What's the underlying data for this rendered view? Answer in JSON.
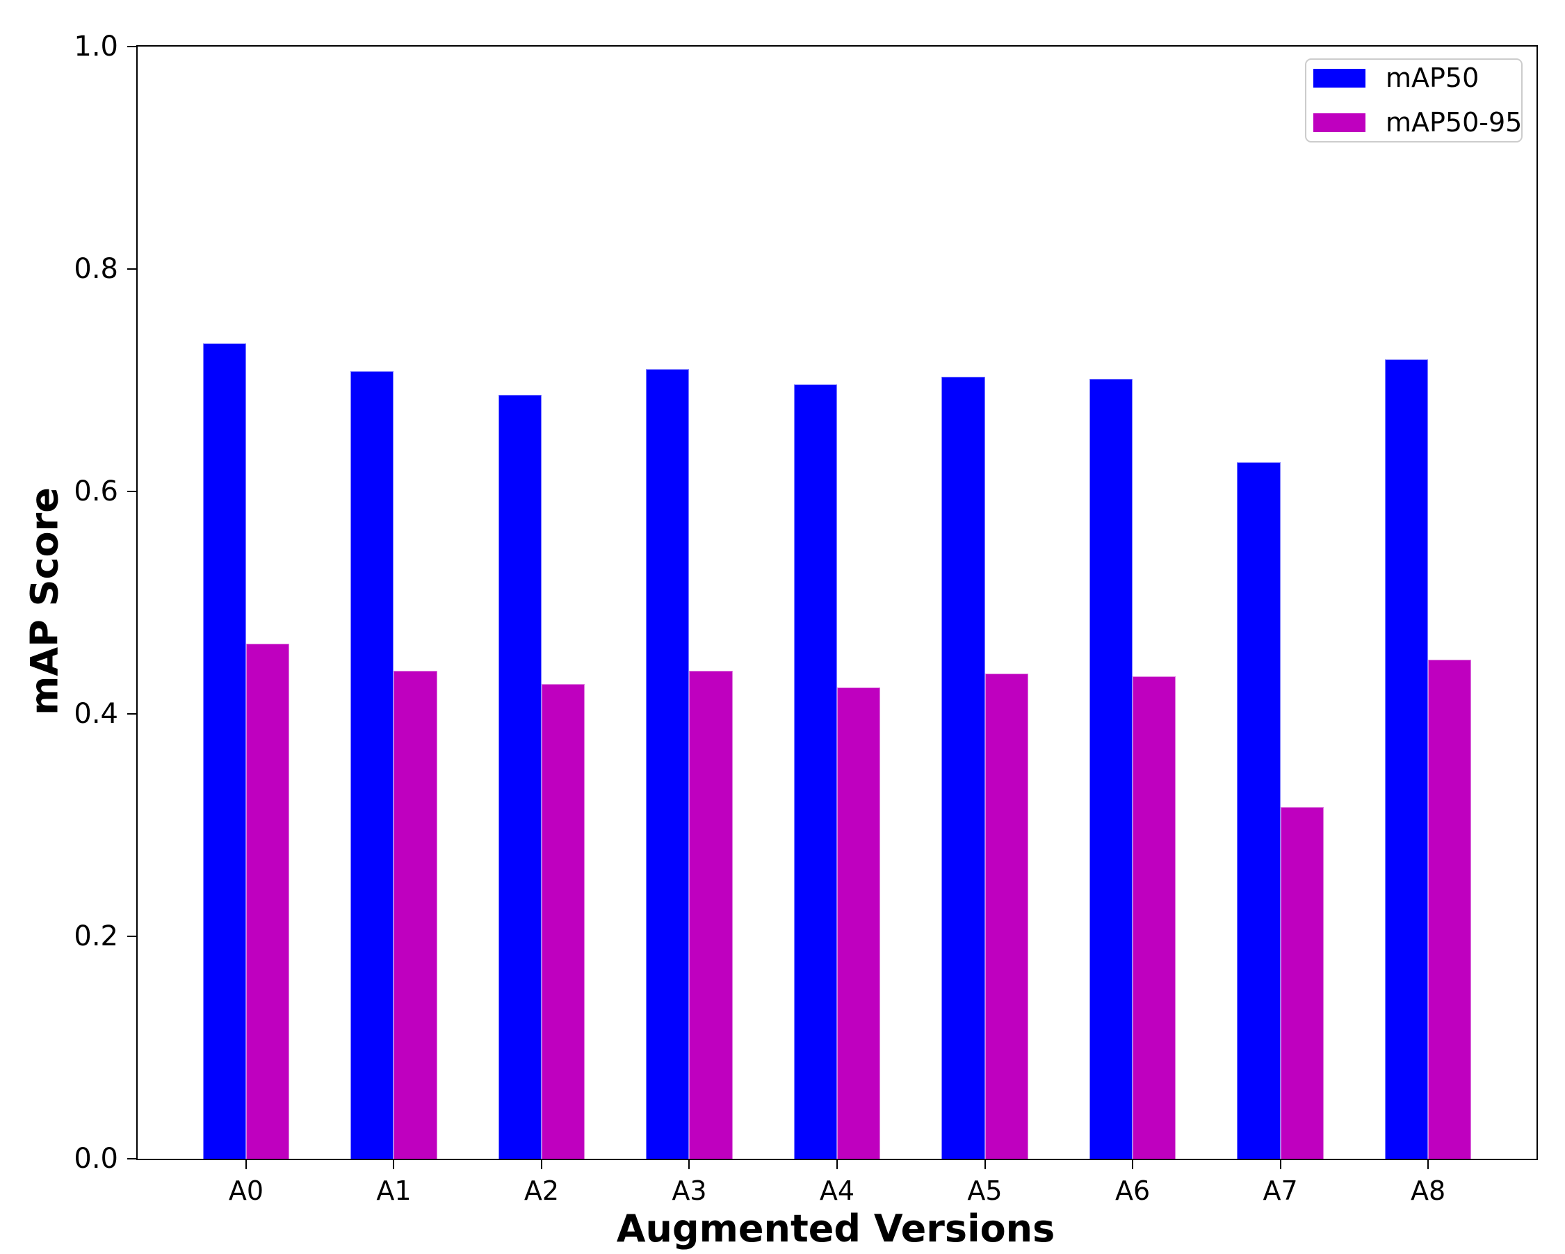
{
  "chart_data": {
    "type": "bar",
    "title": "",
    "xlabel": "Augmented Versions",
    "ylabel": "mAP Score",
    "categories": [
      "A0",
      "A1",
      "A2",
      "A3",
      "A4",
      "A5",
      "A6",
      "A7",
      "A8"
    ],
    "series": [
      {
        "name": "mAP50",
        "color": "#0000ff",
        "edge_color": "#8080ff",
        "values": [
          0.733,
          0.708,
          0.687,
          0.71,
          0.696,
          0.703,
          0.701,
          0.626,
          0.719
        ]
      },
      {
        "name": "mAP50-95",
        "color": "#bf00bf",
        "edge_color": "#df80df",
        "values": [
          0.463,
          0.439,
          0.427,
          0.439,
          0.424,
          0.436,
          0.434,
          0.316,
          0.449
        ]
      }
    ],
    "ylim": [
      0.0,
      1.0
    ],
    "yticks": [
      0.0,
      0.2,
      0.4,
      0.6,
      0.8,
      1.0
    ],
    "grid": false,
    "legend_position": "upper right",
    "axis_color": "#000000",
    "background_color": "#ffffff"
  }
}
